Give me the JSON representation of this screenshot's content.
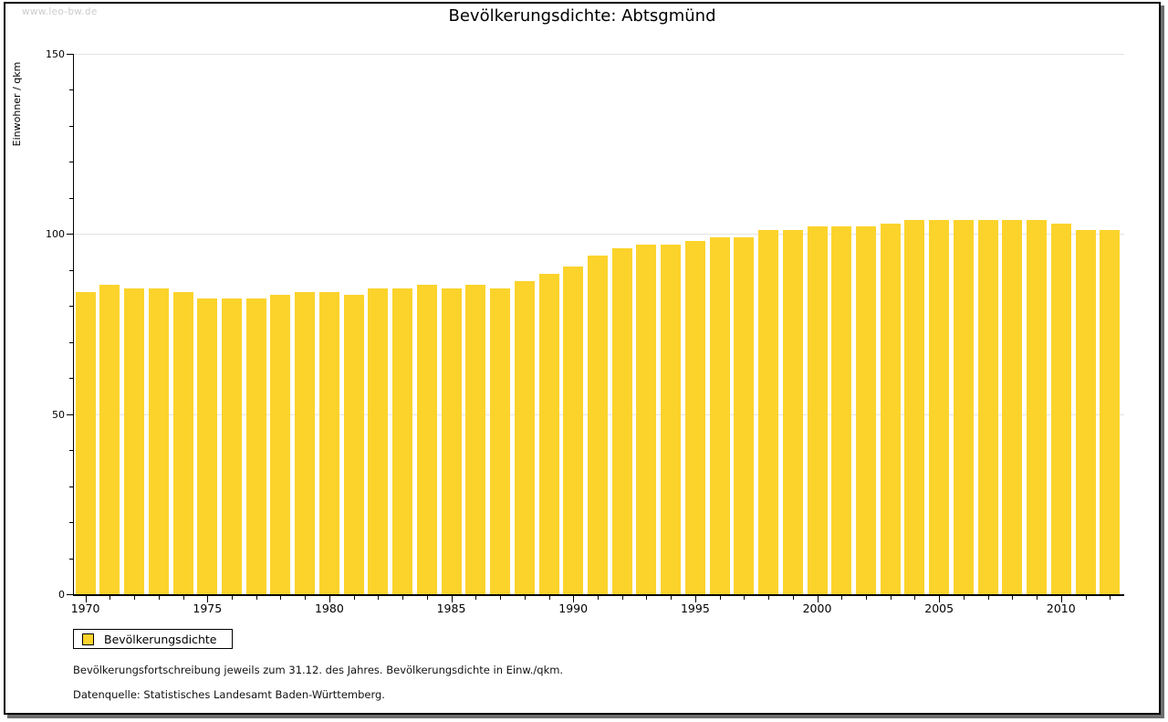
{
  "watermark": "www.leo-bw.de",
  "title": "Bevölkerungsdichte: Abtsgmünd",
  "legend": {
    "label": "Bevölkerungsdichte"
  },
  "footnotes": {
    "line1": "Bevölkerungsfortschreibung jeweils zum 31.12. des Jahres. Bevölkerungsdichte in Einw./qkm.",
    "line2": "Datenquelle: Statistisches Landesamt Baden-Württemberg."
  },
  "colors": {
    "bar": "#fcd32b",
    "gridline": "#e3e3e3",
    "axis": "#000000",
    "watermark": "#cccccc",
    "frame_shadow": "#6e6e6e"
  },
  "chart_data": {
    "type": "bar",
    "title": "Bevölkerungsdichte: Abtsgmünd",
    "xlabel": "",
    "ylabel": "Einwohner / qkm",
    "ylim": [
      0,
      150
    ],
    "yticks_major": [
      0,
      50,
      100,
      150
    ],
    "ytick_minor_step": 10,
    "grid": "horizontal major gridlines at 50/100/150",
    "legend_position": "below plot, left",
    "labeled_years": [
      1970,
      1975,
      1980,
      1985,
      1990,
      1995,
      2000,
      2005,
      2010
    ],
    "categories": [
      1970,
      1971,
      1972,
      1973,
      1974,
      1975,
      1976,
      1977,
      1978,
      1979,
      1980,
      1981,
      1982,
      1983,
      1984,
      1985,
      1986,
      1987,
      1988,
      1989,
      1990,
      1991,
      1992,
      1993,
      1994,
      1995,
      1996,
      1997,
      1998,
      1999,
      2000,
      2001,
      2002,
      2003,
      2004,
      2005,
      2006,
      2007,
      2008,
      2009,
      2010,
      2011,
      2012
    ],
    "values": [
      84,
      86,
      85,
      85,
      84,
      82,
      82,
      82,
      83,
      84,
      84,
      83,
      85,
      85,
      86,
      85,
      86,
      85,
      87,
      89,
      91,
      94,
      96,
      97,
      97,
      98,
      99,
      99,
      101,
      101,
      102,
      102,
      102,
      103,
      104,
      104,
      104,
      104,
      104,
      104,
      103,
      101,
      101
    ],
    "series": [
      {
        "name": "Bevölkerungsdichte",
        "values": [
          84,
          86,
          85,
          85,
          84,
          82,
          82,
          82,
          83,
          84,
          84,
          83,
          85,
          85,
          86,
          85,
          86,
          85,
          87,
          89,
          91,
          94,
          96,
          97,
          97,
          98,
          99,
          99,
          101,
          101,
          102,
          102,
          102,
          103,
          104,
          104,
          104,
          104,
          104,
          104,
          103,
          101,
          101
        ]
      }
    ]
  }
}
